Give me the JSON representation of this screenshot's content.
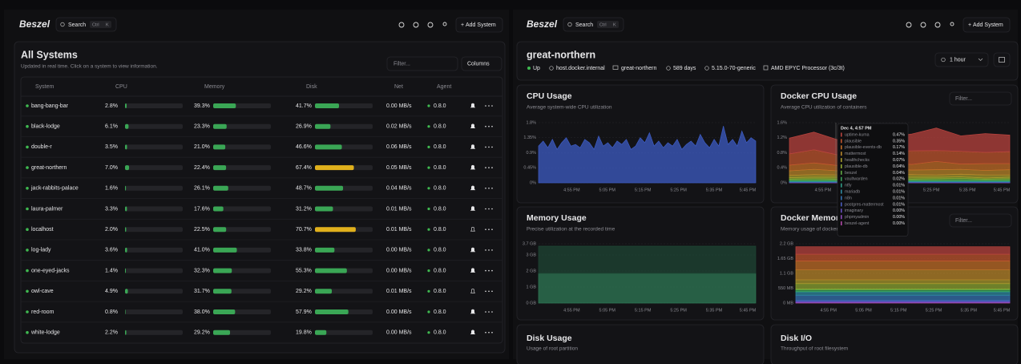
{
  "left": {
    "header": {
      "brand": "Beszel",
      "search": "Search",
      "kbd": [
        "Ctrl",
        "K"
      ],
      "add_button": "Add System"
    },
    "title": "All Systems",
    "subtitle": "Updated in real time. Click on a system to view information.",
    "filter_placeholder": "Filter...",
    "columns_button": "Columns",
    "table": {
      "columns": [
        "System",
        "CPU",
        "Memory",
        "Disk",
        "Net",
        "Agent"
      ],
      "bar_lim": [
        0,
        100
      ],
      "bar_color": "#3aa655",
      "rows": [
        {
          "name": "bang-bang-bar",
          "cpu": {
            "value": 2.8,
            "label": "2.8%"
          },
          "memory": {
            "value": 39.3,
            "label": "39.3%"
          },
          "disk": {
            "value": 41.7,
            "label": "41.7%"
          },
          "net": "0.00 MB/s",
          "agent": "0.8.0",
          "alerts": true
        },
        {
          "name": "black-lodge",
          "cpu": {
            "value": 6.1,
            "label": "6.1%"
          },
          "memory": {
            "value": 23.3,
            "label": "23.3%"
          },
          "disk": {
            "value": 26.9,
            "label": "26.9%"
          },
          "net": "0.02 MB/s",
          "agent": "0.8.0",
          "alerts": true
        },
        {
          "name": "double-r",
          "cpu": {
            "value": 3.5,
            "label": "3.5%"
          },
          "memory": {
            "value": 21,
            "label": "21.0%"
          },
          "disk": {
            "value": 46.6,
            "label": "46.6%"
          },
          "net": "0.06 MB/s",
          "agent": "0.8.0",
          "alerts": true
        },
        {
          "name": "great-northern",
          "cpu": {
            "value": 7,
            "label": "7.0%"
          },
          "memory": {
            "value": 22.4,
            "label": "22.4%"
          },
          "disk": {
            "value": 67.4,
            "label": "67.4%"
          },
          "disk_color": "#e0b01c",
          "net": "0.05 MB/s",
          "agent": "0.8.0",
          "alerts": true
        },
        {
          "name": "jack-rabbits-palace",
          "cpu": {
            "value": 1.6,
            "label": "1.6%"
          },
          "memory": {
            "value": 26.1,
            "label": "26.1%"
          },
          "disk": {
            "value": 48.7,
            "label": "48.7%"
          },
          "net": "0.04 MB/s",
          "agent": "0.8.0",
          "alerts": true
        },
        {
          "name": "laura-palmer",
          "cpu": {
            "value": 3.3,
            "label": "3.3%"
          },
          "memory": {
            "value": 17.6,
            "label": "17.6%"
          },
          "disk": {
            "value": 31.2,
            "label": "31.2%"
          },
          "net": "0.01 MB/s",
          "agent": "0.8.0",
          "alerts": true
        },
        {
          "name": "localhost",
          "cpu": {
            "value": 2,
            "label": "2.0%"
          },
          "memory": {
            "value": 22.5,
            "label": "22.5%"
          },
          "disk": {
            "value": 70.7,
            "label": "70.7%"
          },
          "disk_color": "#e0b01c",
          "net": "0.01 MB/s",
          "agent": "0.8.0",
          "alerts": false
        },
        {
          "name": "log-lady",
          "cpu": {
            "value": 3.6,
            "label": "3.6%"
          },
          "memory": {
            "value": 41,
            "label": "41.0%"
          },
          "disk": {
            "value": 33.8,
            "label": "33.8%"
          },
          "net": "0.00 MB/s",
          "agent": "0.8.0",
          "alerts": true
        },
        {
          "name": "one-eyed-jacks",
          "cpu": {
            "value": 1.4,
            "label": "1.4%"
          },
          "memory": {
            "value": 32.3,
            "label": "32.3%"
          },
          "disk": {
            "value": 55.3,
            "label": "55.3%"
          },
          "net": "0.00 MB/s",
          "agent": "0.8.0",
          "alerts": true
        },
        {
          "name": "owl-cave",
          "cpu": {
            "value": 4.9,
            "label": "4.9%"
          },
          "memory": {
            "value": 31.7,
            "label": "31.7%"
          },
          "disk": {
            "value": 29.2,
            "label": "29.2%"
          },
          "net": "0.01 MB/s",
          "agent": "0.8.0",
          "alerts": false
        },
        {
          "name": "red-room",
          "cpu": {
            "value": 0.8,
            "label": "0.8%"
          },
          "memory": {
            "value": 38,
            "label": "38.0%"
          },
          "disk": {
            "value": 57.9,
            "label": "57.9%"
          },
          "net": "0.00 MB/s",
          "agent": "0.8.0",
          "alerts": true
        },
        {
          "name": "white-lodge",
          "cpu": {
            "value": 2.2,
            "label": "2.2%"
          },
          "memory": {
            "value": 29.2,
            "label": "29.2%"
          },
          "disk": {
            "value": 19.8,
            "label": "19.8%"
          },
          "net": "0.00 MB/s",
          "agent": "0.8.0",
          "alerts": true
        }
      ]
    }
  },
  "right": {
    "header": {
      "brand": "Beszel",
      "search": "Search",
      "kbd": [
        "Ctrl",
        "K"
      ],
      "add_button": "Add System"
    },
    "system": {
      "name": "great-northern",
      "status": "Up",
      "host": "host.docker.internal",
      "hostname": "great-northern",
      "uptime": "589 days",
      "kernel": "5.15.0-70-generic",
      "cpu": "AMD EPYC Processor (3c/3t)"
    },
    "time_range": "1 hour",
    "cards": [
      {
        "title": "Disk Usage",
        "subtitle": "Usage of root partition"
      },
      {
        "title": "Disk I/O",
        "subtitle": "Throughput of root filesystem"
      }
    ]
  },
  "chart_data": [
    {
      "type": "area",
      "title": "CPU Usage",
      "subtitle": "Average system-wide CPU utilization",
      "ylim": [
        0,
        1.8
      ],
      "yticks": [
        {
          "value": 0,
          "label": "0%"
        },
        {
          "value": 0.45,
          "label": "0.45%"
        },
        {
          "value": 0.9,
          "label": "0.9%"
        },
        {
          "value": 1.35,
          "label": "1.35%"
        },
        {
          "value": 1.8,
          "label": "1.8%"
        }
      ],
      "xticks": [
        "4:55 PM",
        "5:05 PM",
        "5:15 PM",
        "5:25 PM",
        "5:35 PM",
        "5:45 PM"
      ],
      "series": [
        {
          "color": "#3d5cc4",
          "values": [
            1.1,
            1.25,
            1.05,
            1.3,
            1.0,
            1.2,
            1.35,
            1.1,
            1.15,
            1.05,
            1.3,
            1.2,
            1.0,
            1.4,
            1.1,
            1.2,
            1.05,
            1.25,
            1.15,
            1.3,
            1.0,
            1.1,
            1.35,
            1.2,
            1.5,
            1.1,
            1.25,
            1.05,
            1.2,
            1.1,
            1.3,
            1.0,
            1.15,
            1.25,
            1.1,
            1.45,
            1.2,
            1.05,
            1.3,
            1.1,
            1.7,
            1.15,
            1.3,
            1.1,
            1.55,
            1.2,
            1.35,
            1.25
          ]
        }
      ]
    },
    {
      "type": "area",
      "title": "Docker CPU Usage",
      "subtitle": "Average CPU utilization of containers",
      "filter_placeholder": "Filter...",
      "ylim": [
        0,
        1.6
      ],
      "yticks": [
        {
          "value": 0,
          "label": "0%"
        },
        {
          "value": 0.4,
          "label": "0.4%"
        },
        {
          "value": 0.8,
          "label": "0.8%"
        },
        {
          "value": 1.2,
          "label": "1.2%"
        },
        {
          "value": 1.6,
          "label": "1.6%"
        }
      ],
      "xticks": [
        "4:55 PM",
        "5:05 PM",
        "5:15 PM",
        "5:25 PM",
        "5:35 PM",
        "5:45 PM"
      ],
      "series": [
        {
          "name": "uptime-kuma",
          "color": "#b8433e",
          "values": [
            0.42,
            0.47,
            0.4,
            0.55,
            0.38,
            0.45,
            0.6,
            0.41,
            0.5,
            0.44
          ]
        },
        {
          "name": "plausible",
          "color": "#c0552e",
          "values": [
            0.3,
            0.35,
            0.28,
            0.33,
            0.31,
            0.36,
            0.29,
            0.34,
            0.3,
            0.32
          ]
        },
        {
          "name": "plausible-events-db",
          "color": "#c26d27",
          "values": [
            0.15,
            0.17,
            0.14,
            0.19,
            0.16,
            0.15,
            0.22,
            0.14,
            0.18,
            0.16
          ]
        },
        {
          "name": "mattermost",
          "color": "#b8862a",
          "values": [
            0.12,
            0.14,
            0.11,
            0.13,
            0.15,
            0.12,
            0.14,
            0.13,
            0.12,
            0.14
          ]
        },
        {
          "name": "healthchecks",
          "color": "#a89a2c",
          "values": [
            0.06,
            0.07,
            0.06,
            0.08,
            0.06,
            0.07,
            0.06,
            0.07,
            0.08,
            0.06
          ]
        },
        {
          "name": "plausible-db",
          "color": "#8ea532",
          "values": [
            0.04,
            0.04,
            0.05,
            0.03,
            0.04,
            0.05,
            0.04,
            0.04,
            0.03,
            0.04
          ]
        },
        {
          "name": "beszel",
          "color": "#5fa843",
          "values": [
            0.03,
            0.04,
            0.03,
            0.04,
            0.05,
            0.03,
            0.04,
            0.04,
            0.03,
            0.04
          ]
        },
        {
          "name": "vaultwarden",
          "color": "#3aa05a",
          "values": [
            0.02,
            0.02,
            0.02,
            0.03,
            0.02,
            0.02,
            0.02,
            0.03,
            0.02,
            0.02
          ]
        },
        {
          "name": "ntfy",
          "color": "#2f9a86",
          "values": [
            0.01,
            0.01,
            0.01,
            0.01,
            0.01,
            0.01,
            0.01,
            0.01,
            0.01,
            0.01
          ]
        },
        {
          "name": "mariadb",
          "color": "#2f8aa0",
          "values": [
            0.01,
            0.01,
            0.01,
            0.01,
            0.01,
            0.01,
            0.01,
            0.01,
            0.01,
            0.01
          ]
        },
        {
          "name": "n8n",
          "color": "#3571b0",
          "values": [
            0.01,
            0.01,
            0.01,
            0.01,
            0.01,
            0.01,
            0.01,
            0.01,
            0.01,
            0.01
          ]
        },
        {
          "name": "postgres-mattermost",
          "color": "#4a5cbd",
          "values": [
            0.01,
            0.01,
            0.01,
            0.01,
            0.01,
            0.01,
            0.01,
            0.01,
            0.01,
            0.01
          ]
        },
        {
          "name": "imaginary",
          "color": "#6650bf",
          "values": [
            0.003,
            0.003,
            0.003,
            0.003,
            0.003,
            0.003,
            0.003,
            0.003,
            0.003,
            0.003
          ]
        },
        {
          "name": "phpmyadmin",
          "color": "#8a4bbb",
          "values": [
            0.003,
            0.003,
            0.003,
            0.003,
            0.003,
            0.003,
            0.003,
            0.003,
            0.003,
            0.003
          ]
        },
        {
          "name": "beszel-agent",
          "color": "#b049a8",
          "values": [
            0.003,
            0.003,
            0.003,
            0.003,
            0.003,
            0.003,
            0.003,
            0.003,
            0.003,
            0.003
          ]
        }
      ],
      "tooltip": {
        "title": "Dec 4, 4:57 PM",
        "value_labels": [
          "0.47%",
          "0.35%",
          "0.17%",
          "0.14%",
          "0.07%",
          "0.04%",
          "0.04%",
          "0.02%",
          "0.01%",
          "0.01%",
          "0.01%",
          "0.01%",
          "0.00%",
          "0.00%",
          "0.00%"
        ]
      }
    },
    {
      "type": "area",
      "title": "Memory Usage",
      "subtitle": "Precise utilization at the recorded time",
      "ylim": [
        0,
        3.7
      ],
      "yticks": [
        {
          "value": 0,
          "label": "0 GB"
        },
        {
          "value": 1,
          "label": "1 GB"
        },
        {
          "value": 2,
          "label": "2 GB"
        },
        {
          "value": 3,
          "label": "3 GB"
        },
        {
          "value": 3.7,
          "label": "3.7 GB"
        }
      ],
      "xticks": [
        "4:55 PM",
        "5:05 PM",
        "5:15 PM",
        "5:25 PM",
        "5:35 PM",
        "5:45 PM"
      ],
      "series": [
        {
          "color": "#1f4634",
          "values": [
            1.7,
            1.7,
            1.7,
            1.7,
            1.7,
            1.7,
            1.7,
            1.7,
            1.7,
            1.7
          ]
        },
        {
          "color": "#2f7a55",
          "values": [
            1.85,
            1.85,
            1.85,
            1.85,
            1.85,
            1.85,
            1.85,
            1.85,
            1.85,
            1.85
          ]
        }
      ]
    },
    {
      "type": "area",
      "title": "Docker Memory Usage",
      "subtitle": "Memory usage of docker containers",
      "filter_placeholder": "Filter...",
      "ylim": [
        0,
        2200
      ],
      "yticks": [
        {
          "value": 0,
          "label": "0 MB"
        },
        {
          "value": 550,
          "label": "550 MB"
        },
        {
          "value": 1100,
          "label": "1.1 GB"
        },
        {
          "value": 1650,
          "label": "1.65 GB"
        },
        {
          "value": 2200,
          "label": "2.2 GB"
        }
      ],
      "xticks": [
        "4:55 PM",
        "5:05 PM",
        "5:15 PM",
        "5:25 PM",
        "5:35 PM",
        "5:45 PM"
      ],
      "series": [
        {
          "name": "uptime-kuma",
          "color": "#b8433e",
          "values": [
            280,
            280,
            280,
            280
          ]
        },
        {
          "name": "plausible",
          "color": "#c0552e",
          "values": [
            250,
            250,
            250,
            250
          ]
        },
        {
          "name": "plausible-events-db",
          "color": "#c26d27",
          "values": [
            320,
            320,
            320,
            320
          ]
        },
        {
          "name": "mattermost",
          "color": "#b8862a",
          "values": [
            380,
            380,
            380,
            380
          ]
        },
        {
          "name": "healthchecks",
          "color": "#a89a2c",
          "values": [
            140,
            140,
            140,
            140
          ]
        },
        {
          "name": "plausible-db",
          "color": "#8ea532",
          "values": [
            200,
            200,
            200,
            200
          ]
        },
        {
          "name": "beszel",
          "color": "#5fa843",
          "values": [
            30,
            30,
            30,
            30
          ]
        },
        {
          "name": "vaultwarden",
          "color": "#3aa05a",
          "values": [
            60,
            60,
            60,
            60
          ]
        },
        {
          "name": "ntfy",
          "color": "#2f9a86",
          "values": [
            20,
            20,
            20,
            20
          ]
        },
        {
          "name": "mariadb",
          "color": "#2f8aa0",
          "values": [
            120,
            120,
            120,
            120
          ]
        },
        {
          "name": "n8n",
          "color": "#3571b0",
          "values": [
            180,
            180,
            180,
            180
          ]
        },
        {
          "name": "postgres-mattermost",
          "color": "#4a5cbd",
          "values": [
            40,
            40,
            40,
            40
          ]
        },
        {
          "name": "imaginary",
          "color": "#6650bf",
          "values": [
            30,
            30,
            30,
            30
          ]
        },
        {
          "name": "phpmyadmin",
          "color": "#8a4bbb",
          "values": [
            25,
            25,
            25,
            25
          ]
        },
        {
          "name": "beszel-agent",
          "color": "#b049a8",
          "values": [
            15,
            15,
            15,
            15
          ]
        }
      ]
    }
  ]
}
